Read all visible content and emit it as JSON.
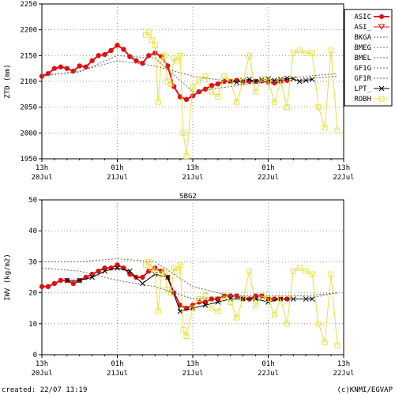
{
  "station": "SBG2",
  "footer": {
    "created": "created: 22/07 13:19",
    "credit": "(c)KNMI/EGVAP"
  },
  "colors": {
    "asic": "#e01010",
    "asi": "#e01010",
    "robh": "#e8e040",
    "lpt": "#000000",
    "model": "#666666",
    "text": "#000000"
  },
  "chart_data": [
    {
      "type": "line",
      "ylabel": "ZTD (mm)",
      "ylim": [
        1950,
        2250
      ],
      "yticks": [
        1950,
        2000,
        2050,
        2100,
        2150,
        2200,
        2250
      ],
      "x_ticks": [
        {
          "top": "13h",
          "bottom": "20Jul"
        },
        {
          "top": "01h",
          "bottom": "21Jul"
        },
        {
          "top": "13h",
          "bottom": "21Jul"
        },
        {
          "top": "01h",
          "bottom": "22Jul"
        },
        {
          "top": "13h",
          "bottom": "22Jul"
        }
      ],
      "xlim_hours": [
        0,
        48
      ],
      "legend": {
        "position": "right",
        "entries": [
          "ASIC",
          "ASI_",
          "BKGA",
          "BMEG",
          "BMEL",
          "GF1G",
          "GF1R",
          "LPT_",
          "ROBH"
        ]
      },
      "series": [
        {
          "name": "ASIC",
          "x": [
            0,
            1,
            2,
            3,
            4,
            5,
            6,
            7,
            8,
            9,
            10,
            11,
            12,
            13,
            14,
            15,
            16,
            17,
            18,
            19,
            20,
            21,
            22,
            23,
            24,
            25,
            26,
            27,
            28,
            29,
            30,
            31,
            32,
            33,
            34,
            35,
            36,
            37,
            38,
            39
          ],
          "y": [
            2110,
            2115,
            2125,
            2128,
            2125,
            2120,
            2130,
            2128,
            2140,
            2150,
            2152,
            2160,
            2170,
            2162,
            2148,
            2140,
            2135,
            2150,
            2155,
            2148,
            2130,
            2090,
            2070,
            2065,
            2072,
            2080,
            2085,
            2092,
            2095,
            2100,
            2100,
            2102,
            2098,
            2100,
            2100,
            2101,
            2098,
            2097,
            2100,
            2102
          ]
        },
        {
          "name": "LPT_",
          "x": [
            30,
            31,
            32,
            33,
            34,
            35,
            36,
            37,
            38,
            39,
            40,
            41,
            42,
            43
          ],
          "y": [
            2100,
            2098,
            2102,
            2104,
            2100,
            2103,
            2105,
            2102,
            2104,
            2106,
            2105,
            2100,
            2102,
            2104
          ]
        },
        {
          "name": "ROBH",
          "x": [
            16.5,
            17,
            17.5,
            18,
            18.5,
            19,
            19.5,
            20,
            20.5,
            21,
            21.5,
            22,
            22.5,
            23,
            24,
            25,
            26,
            27,
            28,
            29,
            30,
            31,
            32,
            33,
            34,
            35,
            36,
            37,
            38,
            39,
            40,
            41,
            42,
            43,
            44,
            45,
            46,
            47
          ],
          "y": [
            2190,
            2195,
            2180,
            2170,
            2060,
            2140,
            2150,
            2100,
            2095,
            2145,
            2140,
            2150,
            2000,
            1955,
            2090,
            2100,
            2110,
            2080,
            2070,
            2110,
            2100,
            2060,
            2100,
            2150,
            2080,
            2105,
            2100,
            2060,
            2100,
            2050,
            2155,
            2160,
            2155,
            2155,
            2050,
            2010,
            2160,
            2005
          ]
        },
        {
          "name": "BKGA",
          "x": [
            0,
            6,
            12,
            18,
            24,
            30,
            36,
            42,
            47
          ],
          "y": [
            2110,
            2120,
            2140,
            2130,
            2110,
            2100,
            2098,
            2105,
            2110
          ]
        },
        {
          "name": "GF1R",
          "x": [
            0,
            6,
            12,
            18,
            24,
            30,
            36,
            42,
            47
          ],
          "y": [
            2112,
            2118,
            2150,
            2145,
            2080,
            2090,
            2100,
            2110,
            2115
          ]
        }
      ]
    },
    {
      "type": "line",
      "title": "SBG2",
      "ylabel": "IWV (kg/m2)",
      "ylim": [
        0,
        50
      ],
      "yticks": [
        0,
        10,
        20,
        30,
        40,
        50
      ],
      "x_ticks": [
        {
          "top": "13h",
          "bottom": "20Jul"
        },
        {
          "top": "01h",
          "bottom": "21Jul"
        },
        {
          "top": "13h",
          "bottom": "21Jul"
        },
        {
          "top": "01h",
          "bottom": "22Jul"
        },
        {
          "top": "13h",
          "bottom": "22Jul"
        }
      ],
      "xlim_hours": [
        0,
        48
      ],
      "series": [
        {
          "name": "ASIC",
          "x": [
            0,
            1,
            2,
            3,
            4,
            5,
            6,
            7,
            8,
            9,
            10,
            11,
            12,
            13,
            14,
            15,
            16,
            17,
            18,
            19,
            20,
            21,
            22,
            23,
            24,
            25,
            26,
            27,
            28,
            29,
            30,
            31,
            32,
            33,
            34,
            35,
            36,
            37,
            38,
            39
          ],
          "y": [
            22,
            22,
            23,
            24,
            24,
            23,
            24,
            25,
            26,
            27,
            28,
            28,
            29,
            28,
            26,
            25,
            25,
            27,
            28,
            27,
            25,
            20,
            16,
            15,
            16,
            17,
            17,
            18,
            18,
            19,
            19,
            19,
            18,
            18,
            19,
            19,
            18,
            18,
            18,
            18
          ]
        },
        {
          "name": "LPT_",
          "x": [
            4,
            6,
            8,
            10,
            12,
            14,
            16,
            18,
            20,
            22,
            24,
            26,
            28,
            30,
            32,
            34,
            36,
            38,
            40,
            42,
            43
          ],
          "y": [
            24,
            24,
            25,
            27,
            28,
            27,
            23,
            26,
            25,
            14,
            15,
            16,
            17,
            18,
            18,
            18,
            17,
            18,
            18,
            18,
            18
          ]
        },
        {
          "name": "ROBH",
          "x": [
            16.5,
            17,
            17.5,
            18,
            18.5,
            19,
            19.5,
            20,
            20.5,
            21,
            21.5,
            22,
            22.5,
            23,
            24,
            25,
            26,
            27,
            28,
            29,
            30,
            31,
            32,
            33,
            34,
            35,
            36,
            37,
            38,
            39,
            40,
            41,
            42,
            43,
            44,
            45,
            46,
            47
          ],
          "y": [
            29,
            30,
            28,
            27,
            14,
            26,
            27,
            21,
            20,
            28,
            27,
            29,
            8,
            6,
            15,
            18,
            19,
            15,
            14,
            19,
            17,
            12,
            18,
            27,
            16,
            19,
            18,
            13,
            18,
            10,
            27,
            28,
            27,
            26,
            10,
            4,
            26,
            3
          ]
        },
        {
          "name": "BKGA",
          "x": [
            0,
            6,
            12,
            18,
            24,
            30,
            36,
            42,
            47
          ],
          "y": [
            30,
            30,
            31,
            30,
            22,
            19,
            18,
            18,
            20
          ]
        },
        {
          "name": "GF1R",
          "x": [
            0,
            6,
            12,
            18,
            24,
            30,
            36,
            42,
            47
          ],
          "y": [
            28,
            27,
            24,
            22,
            18,
            19,
            19,
            19,
            20
          ]
        }
      ]
    }
  ]
}
